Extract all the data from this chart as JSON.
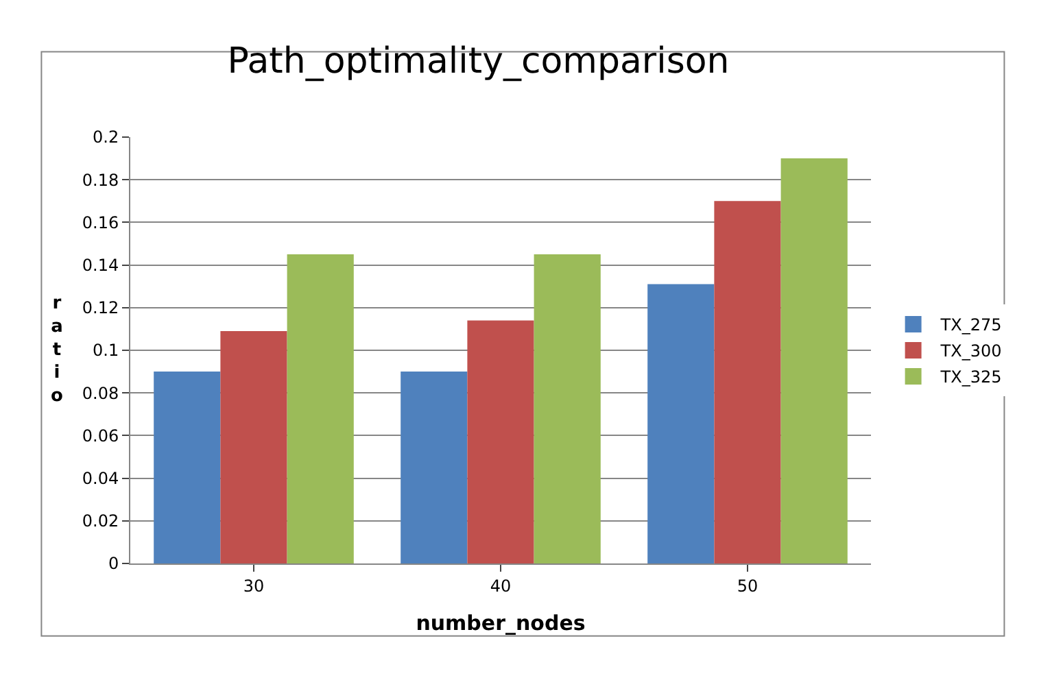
{
  "chart_data": {
    "type": "bar",
    "title": "Path_optimality_comparison",
    "xlabel": "number_nodes",
    "ylabel": "ratio",
    "categories": [
      "30",
      "40",
      "50"
    ],
    "series": [
      {
        "name": "TX_275",
        "color": "#4f81bd",
        "values": [
          0.09,
          0.09,
          0.131
        ]
      },
      {
        "name": "TX_300",
        "color": "#c0504d",
        "values": [
          0.109,
          0.114,
          0.17
        ]
      },
      {
        "name": "TX_325",
        "color": "#9bbb59",
        "values": [
          0.145,
          0.145,
          0.19
        ]
      }
    ],
    "ylim": [
      0,
      0.2
    ],
    "yticks": [
      0,
      0.02,
      0.04,
      0.06,
      0.08,
      0.1,
      0.12,
      0.14,
      0.16,
      0.18,
      0.2
    ],
    "grid": "y",
    "legend": "right"
  }
}
